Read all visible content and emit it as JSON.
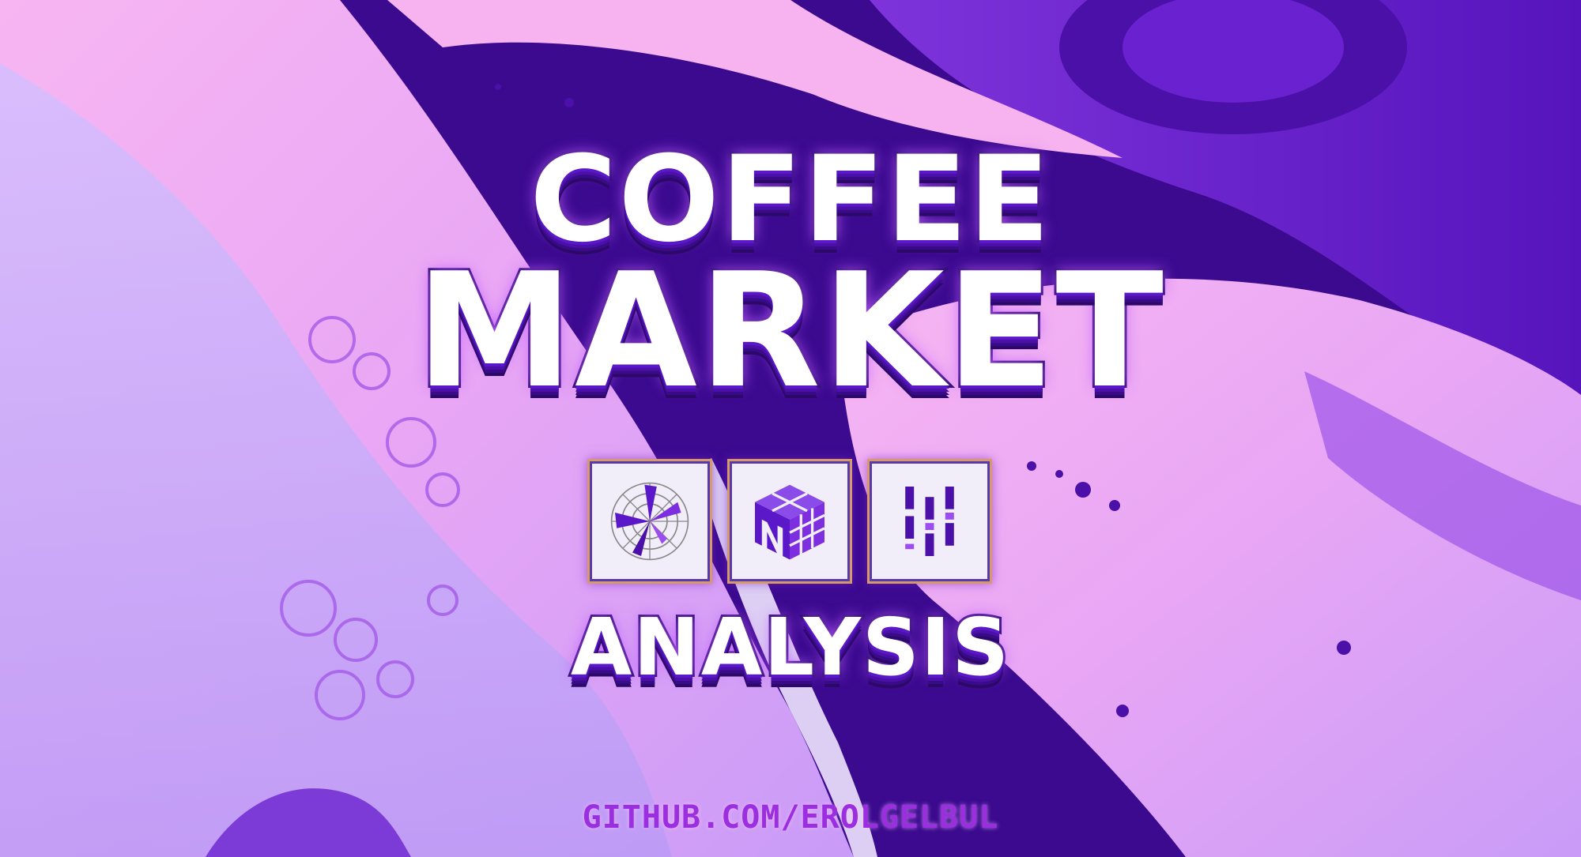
{
  "title": {
    "line1": "COFFEE",
    "line2": "MARKET",
    "line3": "ANALYSIS"
  },
  "logos": [
    {
      "icon": "polar-chart-icon"
    },
    {
      "icon": "numpy-cube-icon"
    },
    {
      "icon": "pandas-bars-icon"
    }
  ],
  "footer": {
    "url": "GITHUB.COM/EROLGELBUL"
  },
  "colors": {
    "deep_purple": "#3b0a8f",
    "pink": "#f4a8f0",
    "lavender": "#d9b8ff",
    "violet": "#7d2fe0",
    "title_fill": "#ffffff",
    "url_color": "#9b2fe0"
  }
}
